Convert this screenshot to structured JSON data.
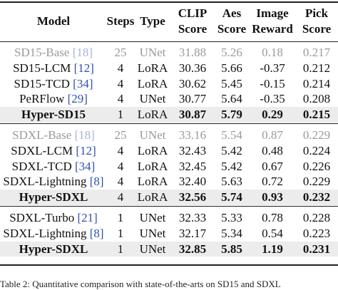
{
  "table": {
    "header": [
      "Model",
      "Steps",
      "Type",
      "CLIP Score",
      "Aes Score",
      "Image Reward",
      "Pick Score"
    ],
    "sections": [
      {
        "rows": [
          {
            "model": "SD15-Base",
            "cite": "[18]",
            "cells": [
              "25",
              "UNet",
              "31.88",
              "5.26",
              "0.18",
              "0.217"
            ],
            "style": "baseline"
          },
          {
            "model": "SD15-LCM",
            "cite": "[12]",
            "cells": [
              "4",
              "LoRA",
              "30.36",
              "5.66",
              "-0.37",
              "0.212"
            ],
            "style": "normal"
          },
          {
            "model": "SD15-TCD",
            "cite": "[34]",
            "cells": [
              "4",
              "LoRA",
              "30.62",
              "5.45",
              "-0.15",
              "0.214"
            ],
            "style": "normal"
          },
          {
            "model": "PeRFlow",
            "cite": "[29]",
            "cells": [
              "4",
              "UNet",
              "30.77",
              "5.64",
              "-0.35",
              "0.208"
            ],
            "style": "normal"
          },
          {
            "model": "Hyper-SD15",
            "cells": [
              "1",
              "LoRA",
              "30.87",
              "5.79",
              "0.29",
              "0.215"
            ],
            "style": "ours"
          }
        ]
      },
      {
        "rows": [
          {
            "model": "SDXL-Base",
            "cite": "[18]",
            "cells": [
              "25",
              "UNet",
              "33.16",
              "5.54",
              "0.87",
              "0.229"
            ],
            "style": "baseline"
          },
          {
            "model": "SDXL-LCM",
            "cite": "[12]",
            "cells": [
              "4",
              "LoRA",
              "32.43",
              "5.42",
              "0.48",
              "0.224"
            ],
            "style": "normal"
          },
          {
            "model": "SDXL-TCD",
            "cite": "[34]",
            "cells": [
              "4",
              "LoRA",
              "32.45",
              "5.42",
              "0.67",
              "0.226"
            ],
            "style": "normal"
          },
          {
            "model": "SDXL-Lightning",
            "cite": "[8]",
            "cells": [
              "4",
              "LoRA",
              "32.40",
              "5.63",
              "0.72",
              "0.229"
            ],
            "style": "normal"
          },
          {
            "model": "Hyper-SDXL",
            "cells": [
              "4",
              "LoRA",
              "32.56",
              "5.74",
              "0.93",
              "0.232"
            ],
            "style": "ours"
          }
        ]
      },
      {
        "rows": [
          {
            "model": "SDXL-Turbo",
            "cite": "[21]",
            "cells": [
              "1",
              "UNet",
              "32.33",
              "5.33",
              "0.78",
              "0.228"
            ],
            "style": "normal"
          },
          {
            "model": "SDXL-Lightning",
            "cite": "[8]",
            "cells": [
              "1",
              "UNet",
              "32.17",
              "5.34",
              "0.54",
              "0.223"
            ],
            "style": "normal"
          },
          {
            "model": "Hyper-SDXL",
            "cells": [
              "1",
              "UNet",
              "32.85",
              "5.85",
              "1.19",
              "0.231"
            ],
            "style": "ours"
          }
        ]
      }
    ],
    "caption": "Table 2: Quantitative comparison with state-of-the-arts on SD15 and SDXL"
  }
}
